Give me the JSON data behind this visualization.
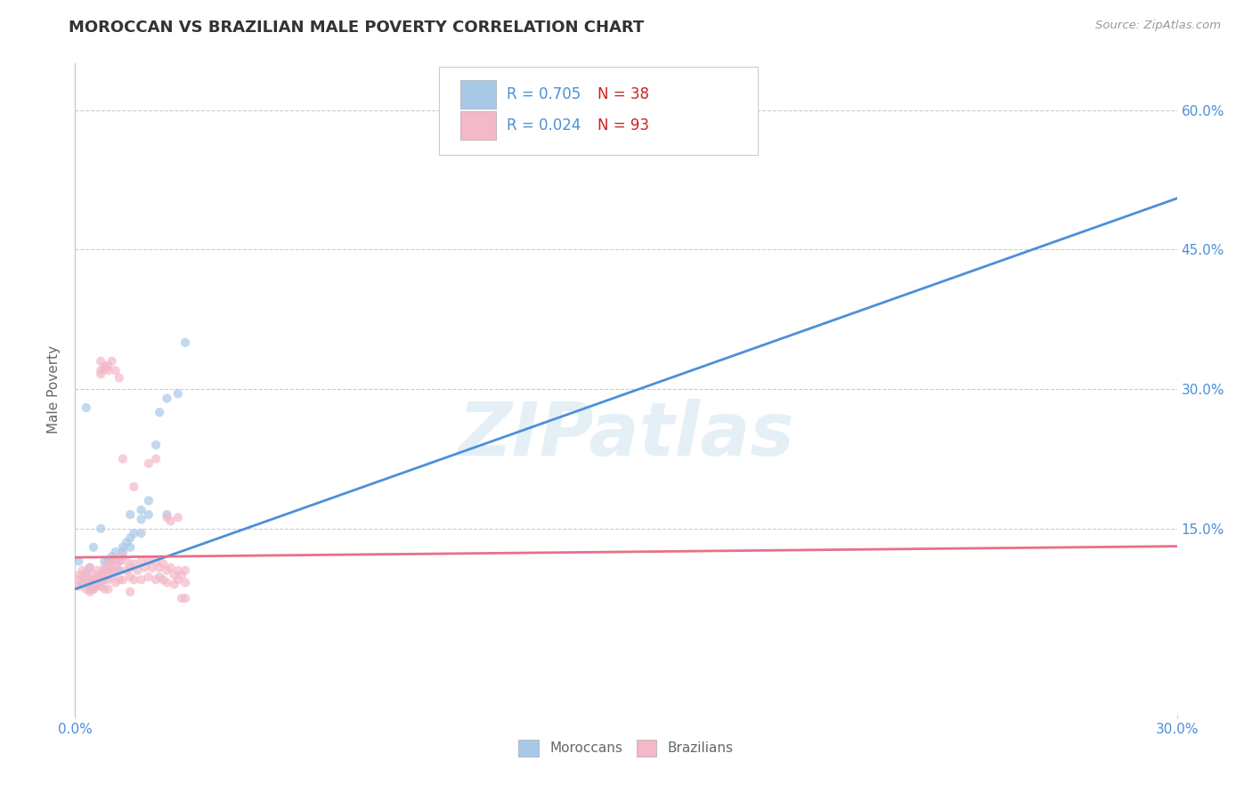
{
  "title": "MOROCCAN VS BRAZILIAN MALE POVERTY CORRELATION CHART",
  "source_text": "Source: ZipAtlas.com",
  "ylabel": "Male Poverty",
  "moroccan_R": 0.705,
  "moroccan_N": 38,
  "brazilian_R": 0.024,
  "brazilian_N": 93,
  "moroccan_color": "#a8c8e8",
  "brazilian_color": "#f4b8c8",
  "moroccan_line_color": "#4a90d9",
  "brazilian_line_color": "#e8708a",
  "moroccan_scatter": [
    [
      0.001,
      0.115
    ],
    [
      0.002,
      0.092
    ],
    [
      0.003,
      0.102
    ],
    [
      0.003,
      0.28
    ],
    [
      0.004,
      0.108
    ],
    [
      0.004,
      0.085
    ],
    [
      0.005,
      0.085
    ],
    [
      0.005,
      0.13
    ],
    [
      0.006,
      0.09
    ],
    [
      0.007,
      0.15
    ],
    [
      0.007,
      0.092
    ],
    [
      0.008,
      0.105
    ],
    [
      0.008,
      0.115
    ],
    [
      0.009,
      0.115
    ],
    [
      0.01,
      0.105
    ],
    [
      0.01,
      0.115
    ],
    [
      0.01,
      0.12
    ],
    [
      0.011,
      0.125
    ],
    [
      0.012,
      0.105
    ],
    [
      0.012,
      0.115
    ],
    [
      0.013,
      0.13
    ],
    [
      0.013,
      0.125
    ],
    [
      0.014,
      0.135
    ],
    [
      0.015,
      0.13
    ],
    [
      0.015,
      0.14
    ],
    [
      0.015,
      0.165
    ],
    [
      0.016,
      0.145
    ],
    [
      0.018,
      0.16
    ],
    [
      0.018,
      0.145
    ],
    [
      0.018,
      0.17
    ],
    [
      0.02,
      0.165
    ],
    [
      0.02,
      0.18
    ],
    [
      0.022,
      0.24
    ],
    [
      0.023,
      0.275
    ],
    [
      0.025,
      0.165
    ],
    [
      0.025,
      0.29
    ],
    [
      0.028,
      0.295
    ],
    [
      0.03,
      0.35
    ]
  ],
  "brazilian_scatter": [
    [
      0.001,
      0.1
    ],
    [
      0.001,
      0.095
    ],
    [
      0.001,
      0.088
    ],
    [
      0.002,
      0.105
    ],
    [
      0.002,
      0.098
    ],
    [
      0.002,
      0.09
    ],
    [
      0.003,
      0.102
    ],
    [
      0.003,
      0.097
    ],
    [
      0.003,
      0.085
    ],
    [
      0.004,
      0.108
    ],
    [
      0.004,
      0.095
    ],
    [
      0.004,
      0.09
    ],
    [
      0.004,
      0.082
    ],
    [
      0.005,
      0.1
    ],
    [
      0.005,
      0.095
    ],
    [
      0.005,
      0.092
    ],
    [
      0.005,
      0.085
    ],
    [
      0.006,
      0.105
    ],
    [
      0.006,
      0.098
    ],
    [
      0.006,
      0.095
    ],
    [
      0.006,
      0.088
    ],
    [
      0.007,
      0.1
    ],
    [
      0.007,
      0.095
    ],
    [
      0.007,
      0.102
    ],
    [
      0.007,
      0.088
    ],
    [
      0.008,
      0.108
    ],
    [
      0.008,
      0.098
    ],
    [
      0.008,
      0.095
    ],
    [
      0.008,
      0.085
    ],
    [
      0.009,
      0.112
    ],
    [
      0.009,
      0.105
    ],
    [
      0.009,
      0.095
    ],
    [
      0.009,
      0.085
    ],
    [
      0.01,
      0.115
    ],
    [
      0.01,
      0.108
    ],
    [
      0.01,
      0.098
    ],
    [
      0.011,
      0.118
    ],
    [
      0.011,
      0.108
    ],
    [
      0.011,
      0.092
    ],
    [
      0.012,
      0.115
    ],
    [
      0.012,
      0.105
    ],
    [
      0.012,
      0.095
    ],
    [
      0.013,
      0.12
    ],
    [
      0.013,
      0.095
    ],
    [
      0.014,
      0.115
    ],
    [
      0.014,
      0.105
    ],
    [
      0.015,
      0.108
    ],
    [
      0.015,
      0.098
    ],
    [
      0.015,
      0.082
    ],
    [
      0.016,
      0.112
    ],
    [
      0.016,
      0.095
    ],
    [
      0.017,
      0.105
    ],
    [
      0.018,
      0.115
    ],
    [
      0.018,
      0.095
    ],
    [
      0.019,
      0.108
    ],
    [
      0.02,
      0.115
    ],
    [
      0.02,
      0.098
    ],
    [
      0.021,
      0.108
    ],
    [
      0.022,
      0.115
    ],
    [
      0.022,
      0.095
    ],
    [
      0.023,
      0.108
    ],
    [
      0.023,
      0.098
    ],
    [
      0.024,
      0.112
    ],
    [
      0.024,
      0.095
    ],
    [
      0.025,
      0.105
    ],
    [
      0.025,
      0.092
    ],
    [
      0.025,
      0.162
    ],
    [
      0.026,
      0.108
    ],
    [
      0.026,
      0.158
    ],
    [
      0.027,
      0.1
    ],
    [
      0.027,
      0.09
    ],
    [
      0.028,
      0.105
    ],
    [
      0.028,
      0.095
    ],
    [
      0.028,
      0.162
    ],
    [
      0.029,
      0.1
    ],
    [
      0.029,
      0.075
    ],
    [
      0.03,
      0.105
    ],
    [
      0.03,
      0.092
    ],
    [
      0.03,
      0.075
    ],
    [
      0.007,
      0.32
    ],
    [
      0.008,
      0.325
    ],
    [
      0.009,
      0.325
    ],
    [
      0.007,
      0.33
    ],
    [
      0.007,
      0.316
    ],
    [
      0.008,
      0.322
    ],
    [
      0.01,
      0.33
    ],
    [
      0.009,
      0.32
    ],
    [
      0.011,
      0.32
    ],
    [
      0.012,
      0.312
    ],
    [
      0.013,
      0.225
    ],
    [
      0.016,
      0.195
    ],
    [
      0.02,
      0.22
    ],
    [
      0.022,
      0.225
    ]
  ],
  "xlim_data": [
    0.0,
    0.3
  ],
  "ylim_data": [
    -0.05,
    0.65
  ],
  "xtick_vals": [
    0.0,
    0.3
  ],
  "xtick_labels": [
    "0.0%",
    "30.0%"
  ],
  "ytick_vals": [
    0.15,
    0.3,
    0.45,
    0.6
  ],
  "ytick_labels": [
    "15.0%",
    "30.0%",
    "45.0%",
    "60.0%"
  ],
  "watermark": "ZIPatlas",
  "moroccan_trend_x": [
    0.0,
    0.3
  ],
  "moroccan_trend_y": [
    0.085,
    0.505
  ],
  "brazilian_trend_x": [
    0.0,
    0.3
  ],
  "brazilian_trend_y": [
    0.119,
    0.131
  ],
  "title_color": "#333333",
  "title_fontsize": 13,
  "grid_color": "#cccccc",
  "axis_label_color": "#666666",
  "tick_color": "#4a90d9",
  "legend_text_color": "#4a90d9",
  "legend_N_color": "#cc2222",
  "background_color": "#ffffff",
  "scatter_alpha": 0.7,
  "scatter_size": 55,
  "legend_moroccan_label": "Moroccans",
  "legend_brazilian_label": "Brazilians"
}
